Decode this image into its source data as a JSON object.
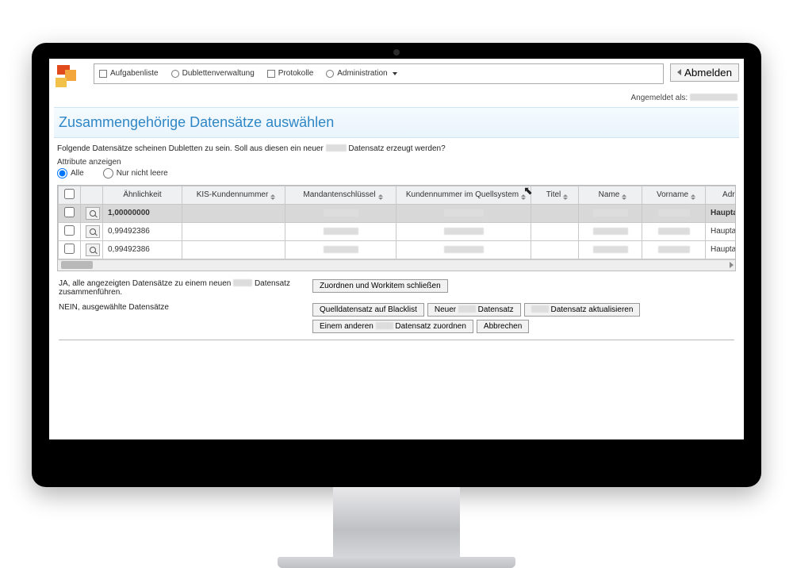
{
  "nav": {
    "items": [
      {
        "label": "Aufgabenliste"
      },
      {
        "label": "Dublettenverwaltung"
      },
      {
        "label": "Protokolle"
      },
      {
        "label": "Administration"
      }
    ],
    "logout": "Abmelden",
    "logged_in_as": "Angemeldet als:"
  },
  "page": {
    "title": "Zusammengehörige Datensätze auswählen",
    "description_a": "Folgende Datensätze scheinen Dubletten zu sein. Soll aus diesen ein neuer",
    "description_b": "Datensatz erzeugt werden?",
    "attributes_label": "Attribute anzeigen",
    "radio_all": "Alle",
    "radio_nonempty": "Nur nicht leere"
  },
  "table": {
    "columns": {
      "similarity": "Ähnlichkeit",
      "kis": "KIS-Kundennummer",
      "mandant": "Mandantenschlüssel",
      "kundennr": "Kundennummer im Quellsystem",
      "titel": "Titel",
      "name": "Name",
      "vorname": "Vorname",
      "adresszweck": "Adresszweck",
      "adr": "Adr"
    },
    "rows": [
      {
        "similarity": "1,00000000",
        "adresszweck": "Hauptadresse",
        "hl": true
      },
      {
        "similarity": "0,99492386",
        "adresszweck": "Hauptadresse",
        "hl": false
      },
      {
        "similarity": "0,99492386",
        "adresszweck": "Hauptadresse",
        "hl": false
      }
    ]
  },
  "actions": {
    "yes_label_a": "JA, alle angezeigten Datensätze zu einem neuen",
    "yes_label_b": "Datensatz zusammenführen.",
    "no_label": "NEIN, ausgewählte Datensätze",
    "btn_close": "Zuordnen und Workitem schließen",
    "btn_blacklist": "Quelldatensatz auf Blacklist",
    "btn_new_a": "Neuer",
    "btn_new_b": "Datensatz",
    "btn_update": "Datensatz aktualisieren",
    "btn_other_a": "Einem anderen",
    "btn_other_b": "Datensatz zuordnen",
    "btn_cancel": "Abbrechen"
  },
  "colors": {
    "accent": "#2f86c6",
    "header_bg": "#eef0f2",
    "highlight_row": "#d8d8d8"
  }
}
